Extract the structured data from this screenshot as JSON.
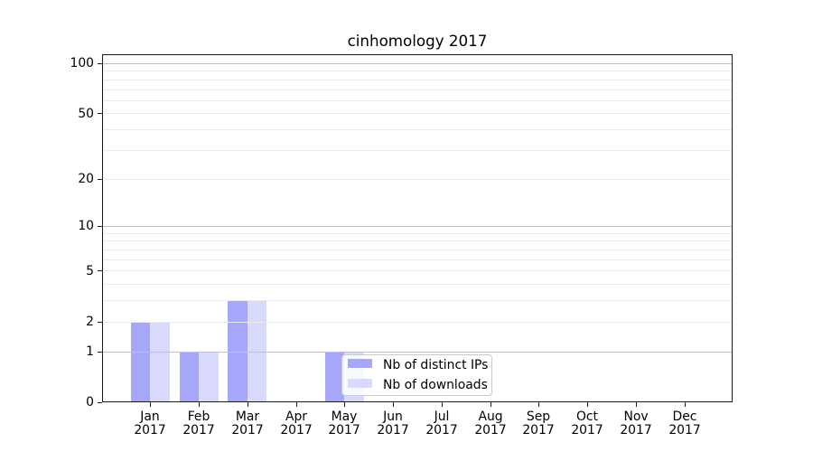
{
  "chart_data": {
    "type": "bar",
    "title": "cinhomology 2017",
    "categories": [
      "Jan 2017",
      "Feb 2017",
      "Mar 2017",
      "Apr 2017",
      "May 2017",
      "Jun 2017",
      "Jul 2017",
      "Aug 2017",
      "Sep 2017",
      "Oct 2017",
      "Nov 2017",
      "Dec 2017"
    ],
    "x_tick_months": [
      "Jan",
      "Feb",
      "Mar",
      "Apr",
      "May",
      "Jun",
      "Jul",
      "Aug",
      "Sep",
      "Oct",
      "Nov",
      "Dec"
    ],
    "x_tick_year": "2017",
    "series": [
      {
        "name": "Nb of distinct IPs",
        "color": "#a6a6fb",
        "values": [
          2,
          1,
          3,
          0,
          1,
          0,
          0,
          0,
          0,
          0,
          0,
          0
        ]
      },
      {
        "name": "Nb of downloads",
        "color": "#d9d9fc",
        "values": [
          2,
          1,
          3,
          0,
          1,
          0,
          0,
          0,
          0,
          0,
          0,
          0
        ]
      }
    ],
    "y_axis": {
      "scale": "log10(1+v)",
      "labeled_ticks": [
        0,
        1,
        2,
        5,
        10,
        20,
        50,
        100
      ],
      "major_gridlines": [
        1,
        10,
        100
      ],
      "minor_gridlines": [
        2,
        3,
        4,
        5,
        6,
        7,
        8,
        9,
        20,
        30,
        40,
        50,
        60,
        70,
        80,
        90
      ],
      "ylim": [
        0,
        113
      ]
    },
    "xlabel": "",
    "ylabel": "",
    "legend": {
      "location": "lower center"
    },
    "grid": {
      "major_color": "#c3c3c3",
      "minor_color": "#ebebeb"
    },
    "spine_color": "#1a1a1a"
  }
}
